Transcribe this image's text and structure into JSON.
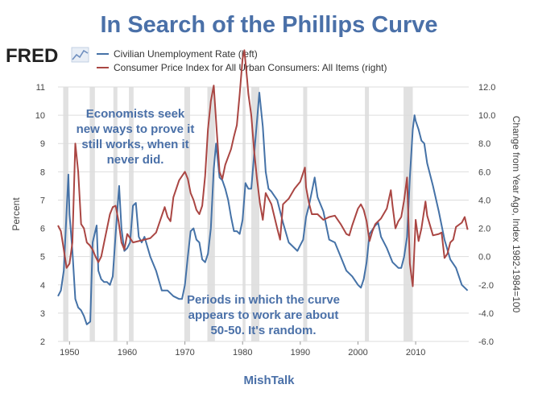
{
  "chart_data": {
    "type": "line",
    "title": "In Search of the Phillips Curve",
    "logo_text": "FRED",
    "source_label": "MishTalk",
    "ylabel_left": "Percent",
    "ylabel_right": "Change from Year Ago, Index 1982-1984=100",
    "xlim": [
      1948,
      2019.2
    ],
    "ylim_left": [
      2,
      11
    ],
    "ylim_right": [
      -6,
      12
    ],
    "x_ticks": [
      "1950",
      "1960",
      "1970",
      "1980",
      "1990",
      "2000",
      "2010"
    ],
    "y_left_ticks": [
      "2",
      "3",
      "4",
      "5",
      "6",
      "7",
      "8",
      "9",
      "10",
      "11"
    ],
    "y_right_ticks": [
      "-6.0",
      "-4.0",
      "-2.0",
      "0.0",
      "2.0",
      "4.0",
      "6.0",
      "8.0",
      "10.0",
      "12.0"
    ],
    "grid": true,
    "recessions": [
      [
        1948.9,
        1949.8
      ],
      [
        1953.5,
        1954.4
      ],
      [
        1957.6,
        1958.3
      ],
      [
        1960.3,
        1961.1
      ],
      [
        1969.9,
        1970.9
      ],
      [
        1973.9,
        1975.2
      ],
      [
        1980.0,
        1980.5
      ],
      [
        1981.5,
        1982.9
      ],
      [
        1990.5,
        1991.2
      ],
      [
        2001.2,
        2001.9
      ],
      [
        2007.9,
        2009.5
      ]
    ],
    "annotations": [
      {
        "lines": [
          "Economists seek",
          "new ways to prove it",
          "still works, when it",
          "never did."
        ]
      },
      {
        "lines": [
          "Periods in which the curve",
          "appears to work are about",
          "50-50. It's random."
        ]
      }
    ],
    "series": [
      {
        "name": "Civilian Unemployment Rate (left)",
        "axis": "left",
        "color": "#4572a7",
        "x": [
          1948.0,
          1948.5,
          1949.0,
          1949.5,
          1949.8,
          1950.0,
          1950.5,
          1951.0,
          1951.5,
          1952.0,
          1952.5,
          1953.0,
          1953.6,
          1954.0,
          1954.7,
          1955.0,
          1955.5,
          1956.0,
          1956.5,
          1957.0,
          1957.5,
          1958.0,
          1958.6,
          1959.0,
          1959.5,
          1960.0,
          1960.5,
          1961.0,
          1961.5,
          1962.0,
          1962.5,
          1963.0,
          1964.0,
          1965.0,
          1966.0,
          1967.0,
          1968.0,
          1969.0,
          1969.5,
          1970.0,
          1970.5,
          1971.0,
          1971.5,
          1972.0,
          1972.5,
          1973.0,
          1973.5,
          1974.0,
          1974.5,
          1975.0,
          1975.4,
          1976.0,
          1976.5,
          1977.0,
          1977.5,
          1978.0,
          1978.5,
          1979.0,
          1979.5,
          1980.0,
          1980.5,
          1981.0,
          1981.5,
          1982.0,
          1982.5,
          1982.9,
          1983.5,
          1984.0,
          1984.5,
          1985.0,
          1986.0,
          1987.0,
          1988.0,
          1989.0,
          1989.5,
          1990.0,
          1990.5,
          1991.0,
          1991.5,
          1992.0,
          1992.5,
          1993.0,
          1994.0,
          1995.0,
          1996.0,
          1997.0,
          1998.0,
          1999.0,
          2000.0,
          2000.5,
          2001.0,
          2001.5,
          2002.0,
          2003.0,
          2003.5,
          2004.0,
          2005.0,
          2006.0,
          2007.0,
          2007.5,
          2008.0,
          2008.5,
          2009.0,
          2009.5,
          2009.8,
          2010.0,
          2010.5,
          2011.0,
          2011.5,
          2012.0,
          2013.0,
          2014.0,
          2015.0,
          2016.0,
          2017.0,
          2018.0,
          2018.5,
          2019.0
        ],
        "values": [
          3.6,
          3.8,
          4.5,
          6.6,
          7.9,
          6.5,
          5.2,
          3.5,
          3.2,
          3.1,
          2.9,
          2.6,
          2.7,
          5.5,
          6.1,
          4.5,
          4.2,
          4.1,
          4.1,
          4.0,
          4.3,
          5.8,
          7.5,
          6.0,
          5.2,
          5.3,
          5.5,
          6.8,
          6.9,
          5.7,
          5.5,
          5.7,
          5.0,
          4.5,
          3.8,
          3.8,
          3.6,
          3.5,
          3.5,
          4.0,
          5.0,
          5.9,
          6.0,
          5.6,
          5.5,
          4.9,
          4.8,
          5.1,
          6.0,
          8.1,
          9.0,
          7.8,
          7.7,
          7.4,
          7.0,
          6.4,
          5.9,
          5.9,
          5.8,
          6.3,
          7.6,
          7.4,
          7.4,
          8.6,
          9.8,
          10.8,
          9.6,
          8.0,
          7.4,
          7.3,
          7.0,
          6.2,
          5.5,
          5.3,
          5.2,
          5.4,
          5.6,
          6.4,
          6.8,
          7.3,
          7.8,
          7.1,
          6.6,
          5.6,
          5.5,
          5.0,
          4.5,
          4.3,
          4.0,
          3.9,
          4.2,
          4.8,
          5.8,
          6.1,
          6.2,
          5.7,
          5.3,
          4.8,
          4.6,
          4.6,
          5.0,
          5.7,
          7.8,
          9.5,
          10.0,
          9.8,
          9.5,
          9.1,
          9.0,
          8.3,
          7.5,
          6.6,
          5.6,
          4.9,
          4.6,
          4.0,
          3.9,
          3.8
        ]
      },
      {
        "name": "Consumer Price Index for All Urban Consumers: All Items (right)",
        "axis": "right",
        "color": "#aa4643",
        "x": [
          1948.0,
          1948.5,
          1949.0,
          1949.5,
          1950.0,
          1950.5,
          1951.0,
          1951.5,
          1952.0,
          1952.5,
          1953.0,
          1953.5,
          1954.0,
          1954.5,
          1955.0,
          1955.5,
          1956.0,
          1956.5,
          1957.0,
          1957.5,
          1958.0,
          1958.5,
          1959.0,
          1959.5,
          1960.0,
          1961.0,
          1962.0,
          1963.0,
          1964.0,
          1965.0,
          1966.0,
          1966.5,
          1967.0,
          1967.5,
          1968.0,
          1969.0,
          1970.0,
          1970.5,
          1971.0,
          1971.5,
          1972.0,
          1972.5,
          1973.0,
          1973.5,
          1974.0,
          1974.5,
          1975.0,
          1975.5,
          1976.0,
          1976.5,
          1977.0,
          1978.0,
          1978.5,
          1979.0,
          1979.5,
          1980.0,
          1980.3,
          1980.8,
          1981.0,
          1981.5,
          1982.0,
          1982.5,
          1983.0,
          1983.5,
          1984.0,
          1985.0,
          1986.0,
          1986.5,
          1987.0,
          1988.0,
          1989.0,
          1990.0,
          1990.8,
          1991.0,
          1991.5,
          1992.0,
          1993.0,
          1994.0,
          1995.0,
          1996.0,
          1997.0,
          1998.0,
          1998.5,
          1999.0,
          2000.0,
          2000.5,
          2001.0,
          2001.5,
          2002.0,
          2002.5,
          2003.0,
          2004.0,
          2005.0,
          2005.7,
          2006.0,
          2006.5,
          2007.0,
          2007.5,
          2008.0,
          2008.5,
          2009.0,
          2009.5,
          2010.0,
          2010.5,
          2011.0,
          2011.7,
          2012.0,
          2013.0,
          2014.0,
          2014.5,
          2015.0,
          2015.5,
          2016.0,
          2016.5,
          2017.0,
          2018.0,
          2018.5,
          2019.0
        ],
        "values": [
          2.2,
          1.8,
          0.5,
          -0.8,
          -0.5,
          1.0,
          8.0,
          6.0,
          2.3,
          2.0,
          1.0,
          0.8,
          0.5,
          0.0,
          -0.4,
          0.0,
          1.0,
          2.0,
          3.0,
          3.5,
          3.6,
          2.5,
          1.0,
          0.5,
          1.6,
          1.0,
          1.1,
          1.2,
          1.3,
          1.7,
          2.9,
          3.5,
          2.8,
          2.5,
          4.2,
          5.4,
          6.0,
          5.5,
          4.5,
          4.0,
          3.3,
          3.0,
          3.6,
          5.7,
          9.0,
          11.0,
          12.1,
          9.0,
          6.0,
          5.5,
          6.5,
          7.6,
          8.5,
          9.3,
          11.5,
          14.0,
          14.6,
          12.5,
          11.5,
          10.0,
          7.5,
          5.5,
          3.8,
          2.6,
          4.5,
          3.7,
          2.0,
          1.2,
          3.7,
          4.1,
          4.8,
          5.3,
          6.3,
          4.9,
          3.8,
          3.0,
          3.0,
          2.6,
          2.8,
          2.9,
          2.3,
          1.6,
          1.5,
          2.2,
          3.4,
          3.7,
          3.3,
          2.5,
          1.1,
          1.8,
          2.3,
          2.7,
          3.4,
          4.7,
          3.6,
          2.0,
          2.5,
          2.8,
          4.0,
          5.6,
          -0.5,
          -2.1,
          2.6,
          1.1,
          2.0,
          3.9,
          2.9,
          1.5,
          1.6,
          1.7,
          -0.1,
          0.2,
          1.0,
          1.2,
          2.1,
          2.4,
          2.8,
          1.9
        ]
      }
    ]
  }
}
